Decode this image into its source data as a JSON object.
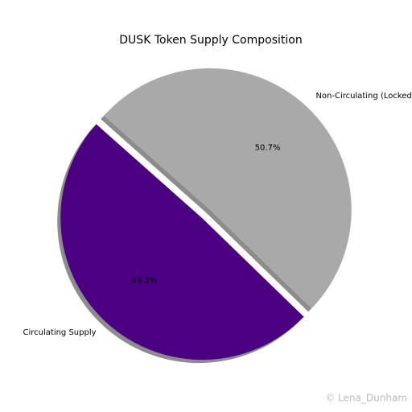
{
  "chart_data": {
    "type": "pie",
    "title": "DUSK Token Supply Composition",
    "categories": [
      "Circulating Supply",
      "Non-Circulating (Locked)"
    ],
    "values": [
      49.3,
      50.7
    ],
    "value_labels": [
      "49.3%",
      "50.7%"
    ],
    "colors": [
      "#4b0082",
      "#a9a9a9"
    ],
    "explode": true,
    "shadow": true
  },
  "watermark": "© Lena_Dunham"
}
